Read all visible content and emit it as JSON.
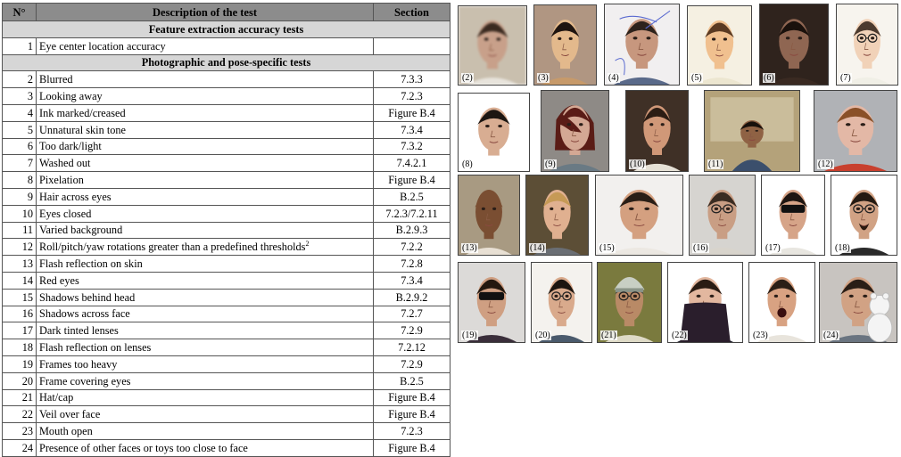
{
  "table": {
    "headers": {
      "num": "N°",
      "desc": "Description  of the test",
      "section": "Section"
    },
    "groups": [
      {
        "title": "Feature  extraction accuracy tests",
        "rows": [
          {
            "n": "1",
            "desc": "Eye center location accuracy",
            "sec": ""
          }
        ]
      },
      {
        "title": "Photographic  and  pose-specific  tests",
        "rows": [
          {
            "n": "2",
            "desc": "Blurred",
            "sec": "7.3.3"
          },
          {
            "n": "3",
            "desc": "Looking away",
            "sec": "7.2.3"
          },
          {
            "n": "4",
            "desc": "Ink marked/creased",
            "sec": "Figure B.4"
          },
          {
            "n": "5",
            "desc": "Unnatural skin tone",
            "sec": "7.3.4"
          },
          {
            "n": "6",
            "desc": "Too dark/light",
            "sec": "7.3.2"
          },
          {
            "n": "7",
            "desc": "Washed out",
            "sec": "7.4.2.1"
          },
          {
            "n": "8",
            "desc": "Pixelation",
            "sec": "Figure B.4"
          },
          {
            "n": "9",
            "desc": "Hair across eyes",
            "sec": "B.2.5"
          },
          {
            "n": "10",
            "desc": "Eyes closed",
            "sec": "7.2.3/7.2.11"
          },
          {
            "n": "11",
            "desc": "Varied background",
            "sec": "B.2.9.3"
          },
          {
            "n": "12",
            "desc": "Roll/pitch/yaw rotations greater than a predefined thresholds",
            "sup": "2",
            "sec": "7.2.2"
          },
          {
            "n": "13",
            "desc": "Flash reflection on skin",
            "sec": "7.2.8"
          },
          {
            "n": "14",
            "desc": "Red eyes",
            "sec": "7.3.4"
          },
          {
            "n": "15",
            "desc": "Shadows behind head",
            "sec": "B.2.9.2"
          },
          {
            "n": "16",
            "desc": "Shadows across face",
            "sec": "7.2.7"
          },
          {
            "n": "17",
            "desc": "Dark tinted lenses",
            "sec": "7.2.9"
          },
          {
            "n": "18",
            "desc": "Flash reflection on lenses",
            "sec": "7.2.12"
          },
          {
            "n": "19",
            "desc": "Frames too heavy",
            "sec": "7.2.9"
          },
          {
            "n": "20",
            "desc": "Frame covering eyes",
            "sec": "B.2.5"
          },
          {
            "n": "21",
            "desc": "Hat/cap",
            "sec": "Figure B.4"
          },
          {
            "n": "22",
            "desc": "Veil over face",
            "sec": "Figure B.4"
          },
          {
            "n": "23",
            "desc": "Mouth open",
            "sec": "7.2.3"
          },
          {
            "n": "24",
            "desc": "Presence of other faces or toys too close to face",
            "sec": "Figure B.4"
          }
        ]
      }
    ]
  },
  "photos": [
    {
      "label": "(2)",
      "bg": "#c9bfae",
      "skin": "#c8a08a",
      "hair": "#3a2a20",
      "shirt": "#e8e4dc",
      "blur": true
    },
    {
      "label": "(3)",
      "bg": "#b09682",
      "skin": "#e3b98c",
      "hair": "#1e1410",
      "shirt": "#c79a6a"
    },
    {
      "label": "(4)",
      "bg": "#f1eff0",
      "skin": "#c7977e",
      "hair": "#2d221c",
      "shirt": "#5a6a8a",
      "ink": true
    },
    {
      "label": "(5)",
      "bg": "#f5f0e2",
      "skin": "#f0c08f",
      "hair": "#5a3a22",
      "shirt": "#ece6d0"
    },
    {
      "label": "(6)",
      "bg": "#2f231d",
      "skin": "#8f6652",
      "hair": "#1a110c",
      "shirt": "#3a2a22"
    },
    {
      "label": "(7)",
      "bg": "#f7f4ee",
      "skin": "#f1d2b8",
      "hair": "#4b3a2e",
      "shirt": "#f0efe6",
      "glasses": true
    },
    {
      "label": "(8)",
      "bg": "#ffffff",
      "skin": "#d8ad92",
      "hair": "#1c1612",
      "shirt": "#ffffff"
    },
    {
      "label": "(9)",
      "bg": "#8e8a86",
      "skin": "#d4a894",
      "hair": "#5a1c16",
      "shirt": "#6a7a84",
      "hairover": true
    },
    {
      "label": "(10)",
      "bg": "#3f3026",
      "skin": "#d09878",
      "hair": "#2c1d14",
      "shirt": "#e6e1d6"
    },
    {
      "label": "(11)",
      "bg": "#b4a27a",
      "skin": "#8f6244",
      "hair": "#18110c",
      "shirt": "#3b4f6c",
      "small": true
    },
    {
      "label": "(12)",
      "bg": "#b0b2b6",
      "skin": "#e3b8a6",
      "hair": "#8a5028",
      "shirt": "#c8402e"
    },
    {
      "label": "(13)",
      "bg": "#a89a82",
      "skin": "#7a4e32",
      "hair": "#7a4e32",
      "shirt": "#e8e0d4"
    },
    {
      "label": "(14)",
      "bg": "#5c4e36",
      "skin": "#e0b090",
      "hair": "#c69a56",
      "shirt": "#6a6e74"
    },
    {
      "label": "(15)",
      "bg": "#f2f0ee",
      "skin": "#d4a080",
      "hair": "#2a1e16",
      "shirt": "#ece8e2"
    },
    {
      "label": "(16)",
      "bg": "#d6d4d0",
      "skin": "#c99e84",
      "hair": "#3a2c22",
      "shirt": "#d8d4cc",
      "glasses": true
    },
    {
      "label": "(17)",
      "bg": "#ffffff",
      "skin": "#d6a488",
      "hair": "#1e1612",
      "shirt": "#e8e6e0",
      "sunglasses": true
    },
    {
      "label": "(18)",
      "bg": "#ffffff",
      "skin": "#d1a284",
      "hair": "#241a12",
      "shirt": "#2a2a2a",
      "glasses": true,
      "beard": true
    },
    {
      "label": "(19)",
      "bg": "#dcdad8",
      "skin": "#cf9f82",
      "hair": "#24180f",
      "shirt": "#3a2e3a",
      "mask": true
    },
    {
      "label": "(20)",
      "bg": "#f4f2ee",
      "skin": "#d9aa8c",
      "hair": "#1b140f",
      "shirt": "#4a5a6c",
      "glasses": true
    },
    {
      "label": "(21)",
      "bg": "#7a7a3e",
      "skin": "#b98a66",
      "hair": "#4a4e48",
      "shirt": "#dedac6",
      "cap": true,
      "glasses": true
    },
    {
      "label": "(22)",
      "bg": "#ffffff",
      "skin": "#e2b79f",
      "hair": "#2a1c14",
      "shirt": "#1c1c28",
      "veil": true
    },
    {
      "label": "(23)",
      "bg": "#ffffff",
      "skin": "#d8a282",
      "hair": "#2a1e16",
      "shirt": "#e8e4dc",
      "mouth": true
    },
    {
      "label": "(24)",
      "bg": "#c8c4c0",
      "skin": "#d1a284",
      "hair": "#2a1e16",
      "shirt": "#6a7480",
      "toy": true
    }
  ]
}
